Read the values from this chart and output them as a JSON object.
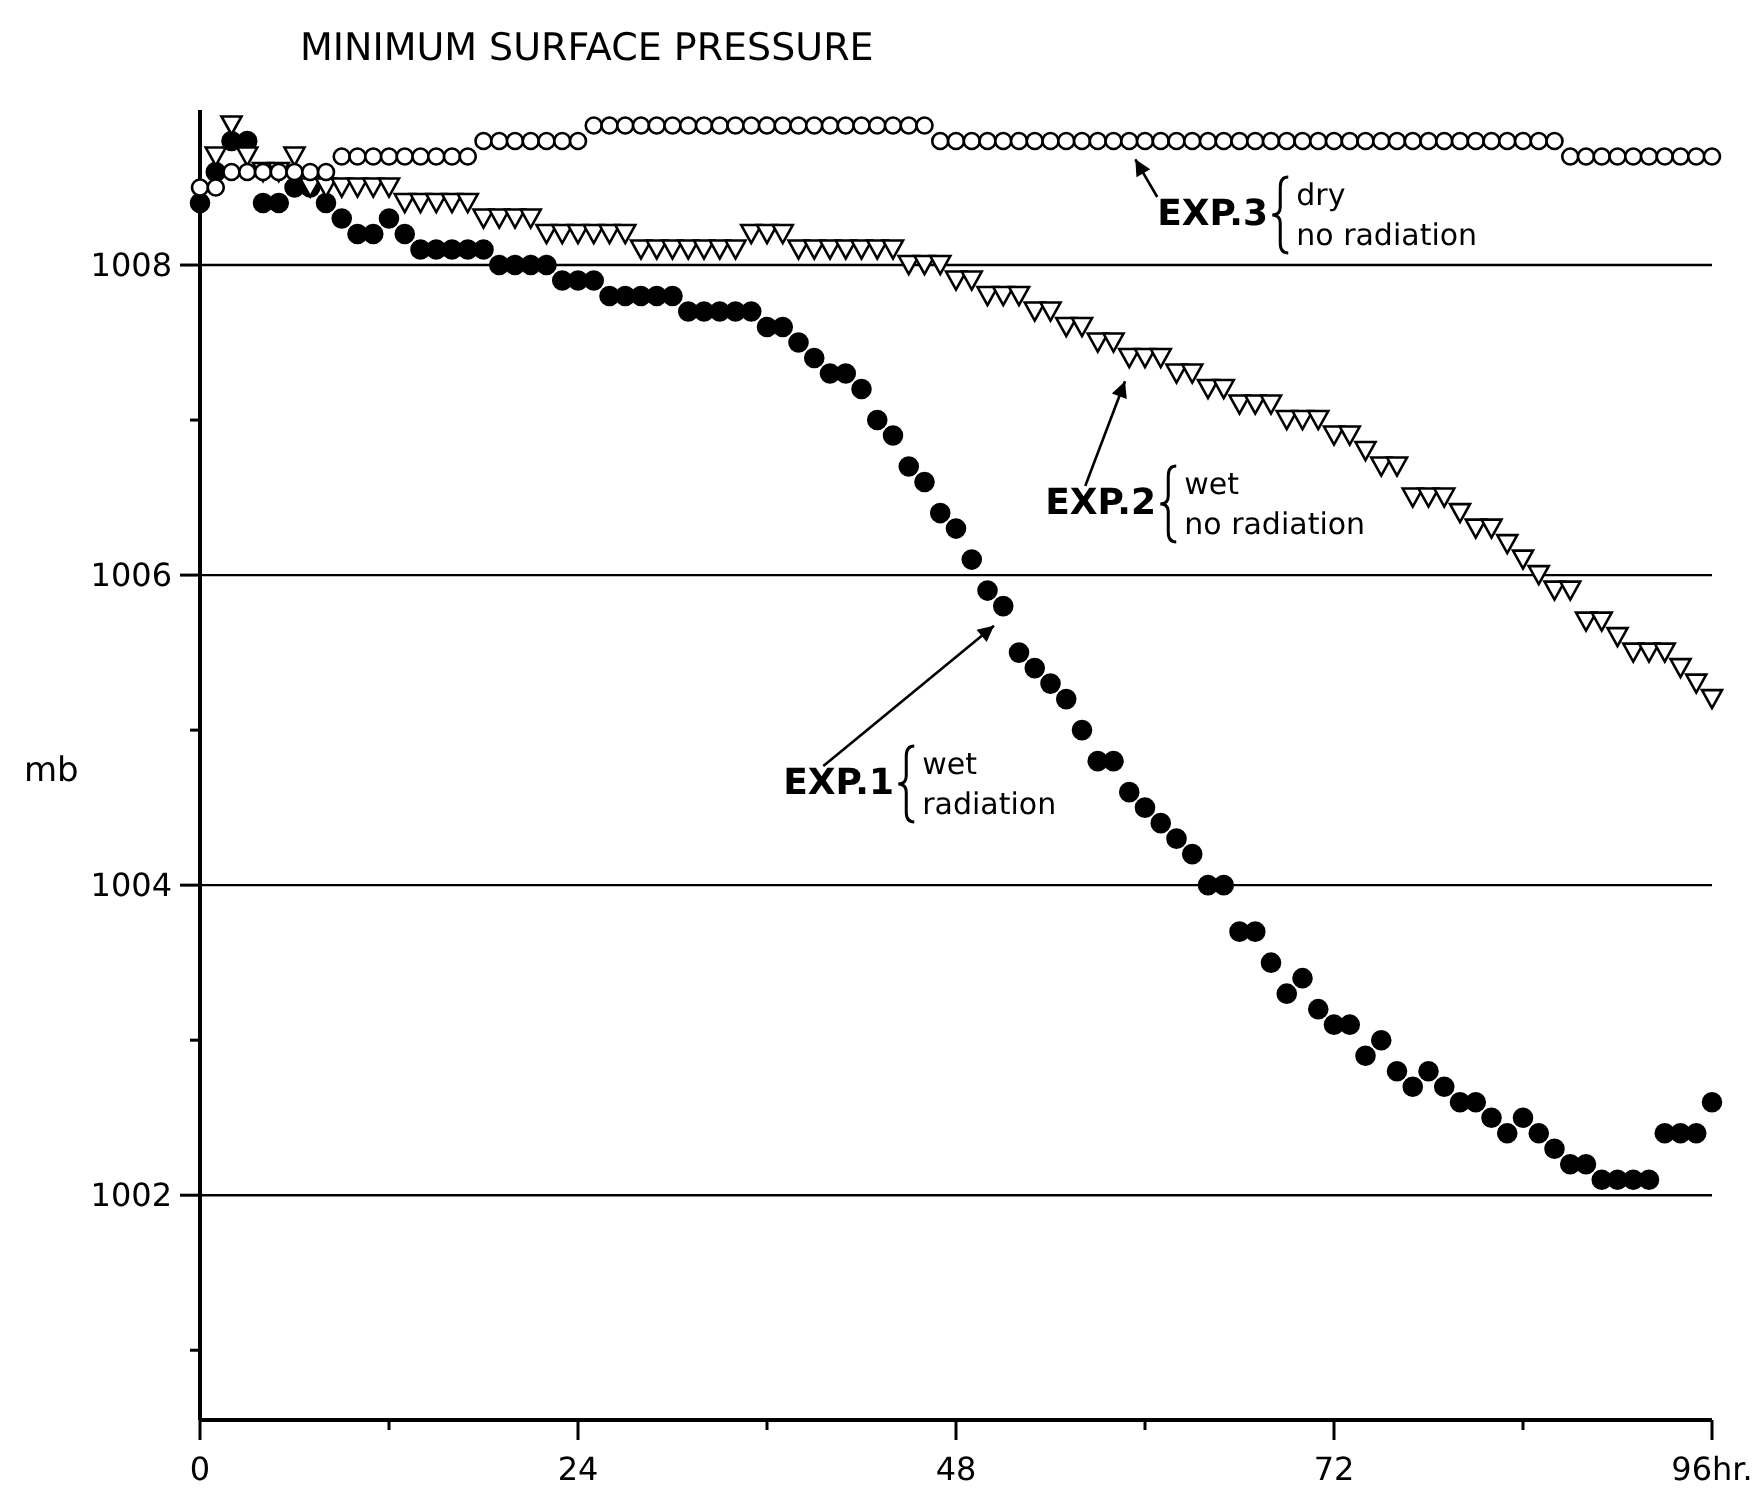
{
  "chart_data": {
    "type": "scatter",
    "title": "MINIMUM SURFACE PRESSURE",
    "ylabel": "mb",
    "xlim": [
      0,
      96
    ],
    "ylim": [
      1000.55,
      1009
    ],
    "xticks": [
      0,
      {
        "value": 12,
        "label": null
      },
      24,
      {
        "value": 36,
        "label": null
      },
      48,
      {
        "value": 60,
        "label": null
      },
      72,
      {
        "value": 84,
        "label": null
      },
      {
        "value": 96,
        "label": "96hr."
      }
    ],
    "yticks": [
      {
        "value": 1001,
        "label": null
      },
      1002,
      {
        "value": 1003,
        "label": null
      },
      1004,
      {
        "value": 1005,
        "label": null
      },
      1006,
      {
        "value": 1007,
        "label": null
      },
      1008
    ],
    "grid": "y",
    "legend": "top right",
    "x": [
      0,
      1,
      2,
      3,
      4,
      5,
      6,
      7,
      8,
      9,
      10,
      11,
      12,
      13,
      14,
      15,
      16,
      17,
      18,
      19,
      20,
      21,
      22,
      23,
      24,
      25,
      26,
      27,
      28,
      29,
      30,
      31,
      32,
      33,
      34,
      35,
      36,
      37,
      38,
      39,
      40,
      41,
      42,
      43,
      44,
      45,
      46,
      47,
      48,
      49,
      50,
      51,
      52,
      53,
      54,
      55,
      56,
      57,
      58,
      59,
      60,
      61,
      62,
      63,
      64,
      65,
      66,
      67,
      68,
      69,
      70,
      71,
      72,
      73,
      74,
      75,
      76,
      77,
      78,
      79,
      80,
      81,
      82,
      83,
      84,
      85,
      86,
      87,
      88,
      89,
      90,
      91,
      92,
      93,
      94,
      95,
      96
    ],
    "series": [
      {
        "name": "EXP.1",
        "color": "#000000",
        "marker": "circle",
        "values": [
          1008.4,
          1008.6,
          1008.8,
          1008.8,
          1008.4,
          1008.4,
          1008.5,
          1008.5,
          1008.4,
          1008.3,
          1008.2,
          1008.2,
          1008.3,
          1008.2,
          1008.1,
          1008.1,
          1008.1,
          1008.1,
          1008.1,
          1008.0,
          1008.0,
          1008.0,
          1008.0,
          1007.9,
          1007.9,
          1007.9,
          1007.8,
          1007.8,
          1007.8,
          1007.8,
          1007.8,
          1007.7,
          1007.7,
          1007.7,
          1007.7,
          1007.7,
          1007.6,
          1007.6,
          1007.5,
          1007.4,
          1007.3,
          1007.3,
          1007.2,
          1007.0,
          1006.9,
          1006.7,
          1006.6,
          1006.4,
          1006.3,
          1006.1,
          1005.9,
          1005.8,
          1005.5,
          1005.4,
          1005.3,
          1005.2,
          1005.0,
          1004.8,
          1004.8,
          1004.6,
          1004.5,
          1004.4,
          1004.3,
          1004.2,
          1004.0,
          1004.0,
          1003.7,
          1003.7,
          1003.5,
          1003.3,
          1003.4,
          1003.2,
          1003.1,
          1003.1,
          1002.9,
          1003.0,
          1002.8,
          1002.7,
          1002.8,
          1002.7,
          1002.6,
          1002.6,
          1002.5,
          1002.4,
          1002.5,
          1002.4,
          1002.3,
          1002.2,
          1002.2,
          1002.1,
          1002.1,
          1002.1,
          1002.1,
          1002.4,
          1002.4,
          1002.4,
          1002.6
        ]
      },
      {
        "name": "EXP.2",
        "color": "#000000",
        "marker": "triangle",
        "values": [
          null,
          1008.7,
          1008.9,
          1008.7,
          1008.6,
          1008.6,
          1008.7,
          1008.5,
          1008.5,
          1008.5,
          1008.5,
          1008.5,
          1008.5,
          1008.4,
          1008.4,
          1008.4,
          1008.4,
          1008.4,
          1008.3,
          1008.3,
          1008.3,
          1008.3,
          1008.2,
          1008.2,
          1008.2,
          1008.2,
          1008.2,
          1008.2,
          1008.1,
          1008.1,
          1008.1,
          1008.1,
          1008.1,
          1008.1,
          1008.1,
          1008.2,
          1008.2,
          1008.2,
          1008.1,
          1008.1,
          1008.1,
          1008.1,
          1008.1,
          1008.1,
          1008.1,
          1008.0,
          1008.0,
          1008.0,
          1007.9,
          1007.9,
          1007.8,
          1007.8,
          1007.8,
          1007.7,
          1007.7,
          1007.6,
          1007.6,
          1007.5,
          1007.5,
          1007.4,
          1007.4,
          1007.4,
          1007.3,
          1007.3,
          1007.2,
          1007.2,
          1007.1,
          1007.1,
          1007.1,
          1007.0,
          1007.0,
          1007.0,
          1006.9,
          1006.9,
          1006.8,
          1006.7,
          1006.7,
          1006.5,
          1006.5,
          1006.5,
          1006.4,
          1006.3,
          1006.3,
          1006.2,
          1006.1,
          1006.0,
          1005.9,
          1005.9,
          1005.7,
          1005.7,
          1005.6,
          1005.5,
          1005.5,
          1005.5,
          1005.4,
          1005.3,
          1005.2
        ]
      },
      {
        "name": "EXP.3",
        "color": "#000000",
        "marker": "circle",
        "values": [
          1008.5,
          1008.5,
          1008.6,
          1008.6,
          1008.6,
          1008.6,
          1008.6,
          1008.6,
          1008.6,
          1008.7,
          1008.7,
          1008.7,
          1008.7,
          1008.7,
          1008.7,
          1008.7,
          1008.7,
          1008.7,
          1008.8,
          1008.8,
          1008.8,
          1008.8,
          1008.8,
          1008.8,
          1008.8,
          1008.9,
          1008.9,
          1008.9,
          1008.9,
          1008.9,
          1008.9,
          1008.9,
          1008.9,
          1008.9,
          1008.9,
          1008.9,
          1008.9,
          1008.9,
          1008.9,
          1008.9,
          1008.9,
          1008.9,
          1008.9,
          1008.9,
          1008.9,
          1008.9,
          1008.9,
          1008.8,
          1008.8,
          1008.8,
          1008.8,
          1008.8,
          1008.8,
          1008.8,
          1008.8,
          1008.8,
          1008.8,
          1008.8,
          1008.8,
          1008.8,
          1008.8,
          1008.8,
          1008.8,
          1008.8,
          1008.8,
          1008.8,
          1008.8,
          1008.8,
          1008.8,
          1008.8,
          1008.8,
          1008.8,
          1008.8,
          1008.8,
          1008.8,
          1008.8,
          1008.8,
          1008.8,
          1008.8,
          1008.8,
          1008.8,
          1008.8,
          1008.8,
          1008.8,
          1008.8,
          1008.8,
          1008.8,
          1008.7,
          1008.7,
          1008.7,
          1008.7,
          1008.7,
          1008.7,
          1008.7,
          1008.7,
          1008.7,
          1008.7
        ]
      }
    ],
    "annotations": [
      "wet\nradiation",
      "wet\nno radiation",
      "dry\nno radiation"
    ]
  }
}
